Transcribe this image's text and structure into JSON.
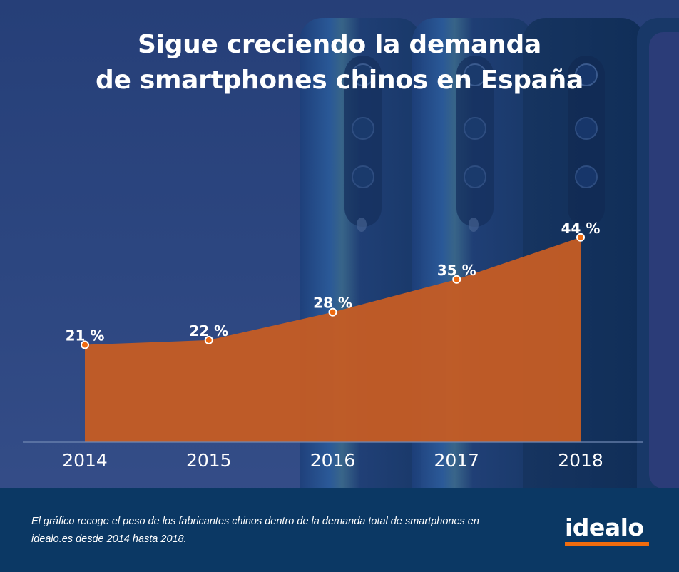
{
  "title": {
    "line1": "Sigue creciendo la demanda",
    "line2": "de smartphones chinos en España"
  },
  "colors": {
    "background": "#2c4680",
    "area_fill": "#c45c24",
    "marker_fill": "#ef6a10",
    "marker_stroke": "#ffffff",
    "footer_bg": "#0b3864",
    "logo_accent": "#f26c0d"
  },
  "chart_data": {
    "type": "area",
    "title": "Sigue creciendo la demanda de smartphones chinos en España",
    "xlabel": "",
    "ylabel": "",
    "categories": [
      "2014",
      "2015",
      "2016",
      "2017",
      "2018"
    ],
    "values": [
      21,
      22,
      28,
      35,
      44
    ],
    "data_labels": [
      "21 %",
      "22 %",
      "28 %",
      "35 %",
      "44 %"
    ],
    "unit": "%",
    "ylim": [
      0,
      44
    ],
    "grid": false,
    "legend": "none",
    "series": [
      {
        "name": "Peso de los fabricantes chinos en la demanda total de smartphones",
        "values": [
          21,
          22,
          28,
          35,
          44
        ]
      }
    ]
  },
  "footer": {
    "caption": "El gráfico recoge el peso de los fabricantes chinos dentro de la demanda total de smartphones en idealo.es desde 2014 hasta 2018.",
    "logo_text": "idealo"
  }
}
